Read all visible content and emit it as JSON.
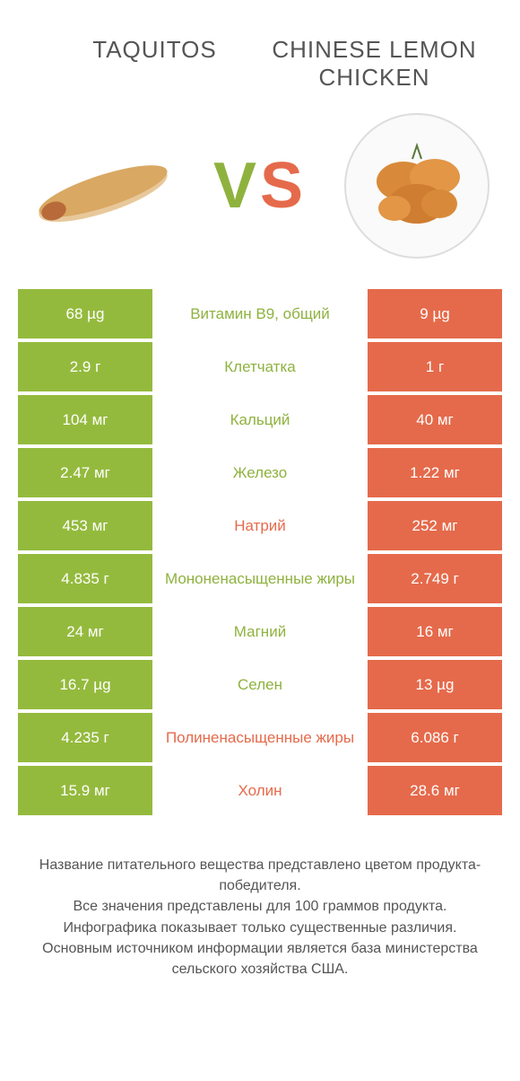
{
  "header": {
    "left_title": "TAQUITOS",
    "right_title": "CHINESE LEMON CHICKEN",
    "vs": "VS"
  },
  "colors": {
    "green": "#94ba3d",
    "orange": "#e56a4b",
    "green_text": "#8fb23f",
    "orange_text": "#e56a4b"
  },
  "rows": [
    {
      "left": "68 µg",
      "label": "Витамин B9, общий",
      "right": "9 µg",
      "winner": "left"
    },
    {
      "left": "2.9 г",
      "label": "Клетчатка",
      "right": "1 г",
      "winner": "left"
    },
    {
      "left": "104 мг",
      "label": "Кальций",
      "right": "40 мг",
      "winner": "left"
    },
    {
      "left": "2.47 мг",
      "label": "Железо",
      "right": "1.22 мг",
      "winner": "left"
    },
    {
      "left": "453 мг",
      "label": "Натрий",
      "right": "252 мг",
      "winner": "right"
    },
    {
      "left": "4.835 г",
      "label": "Мононенасыщенные жиры",
      "right": "2.749 г",
      "winner": "left"
    },
    {
      "left": "24 мг",
      "label": "Магний",
      "right": "16 мг",
      "winner": "left"
    },
    {
      "left": "16.7 µg",
      "label": "Селен",
      "right": "13 µg",
      "winner": "left"
    },
    {
      "left": "4.235 г",
      "label": "Полиненасыщенные жиры",
      "right": "6.086 г",
      "winner": "right"
    },
    {
      "left": "15.9 мг",
      "label": "Холин",
      "right": "28.6 мг",
      "winner": "right"
    }
  ],
  "footer": {
    "line1": "Название питательного вещества представлено цветом продукта-победителя.",
    "line2": "Все значения представлены для 100 граммов продукта.",
    "line3": "Инфографика показывает только существенные различия.",
    "line4": "Основным источником информации является база министерства сельского хозяйства США."
  }
}
